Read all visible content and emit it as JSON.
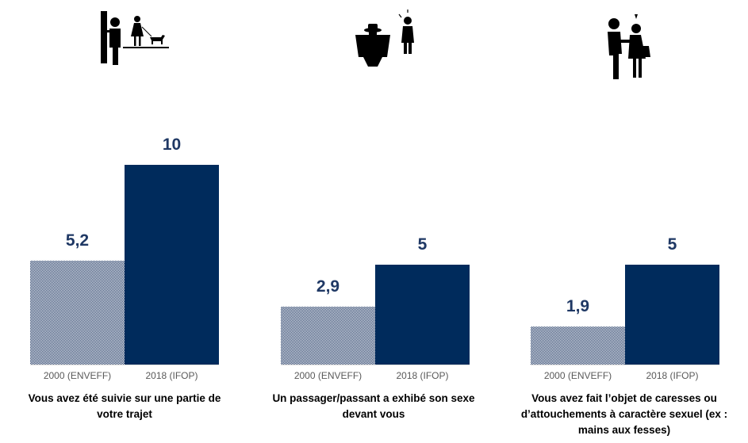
{
  "colors": {
    "series_2018": "#002b5c",
    "series_2000": "#1f3864",
    "value_label": "#1f3864",
    "baseline": "#d9d9d9"
  },
  "icons": [
    "man-following-woman-icon",
    "flasher-icon",
    "groping-icon"
  ],
  "chart_data": [
    {
      "type": "bar",
      "title": "Vous avez été suivie sur une partie de votre trajet",
      "title_lines": [
        "Vous avez été suivie sur une partie de",
        "votre trajet"
      ],
      "categories": [
        "2000 (ENVEFF)",
        "2018 (IFOP)"
      ],
      "values": [
        5.2,
        10
      ],
      "value_labels": [
        "5,2",
        "10"
      ],
      "ylim": [
        0,
        10
      ]
    },
    {
      "type": "bar",
      "title": "Un passager/passant a exhibé son sexe devant vous",
      "title_lines": [
        "Un passager/passant a exhibé son sexe",
        "devant vous"
      ],
      "categories": [
        "2000 (ENVEFF)",
        "2018 (IFOP)"
      ],
      "values": [
        2.9,
        5
      ],
      "value_labels": [
        "2,9",
        "5"
      ],
      "ylim": [
        0,
        10
      ]
    },
    {
      "type": "bar",
      "title": "Vous avez fait l’objet de caresses ou d’attouchements à caractère sexuel (ex : mains aux fesses)",
      "title_lines": [
        "Vous avez fait l’objet de caresses ou",
        "d’attouchements à caractère sexuel (ex :",
        "mains aux fesses)"
      ],
      "categories": [
        "2000 (ENVEFF)",
        "2018 (IFOP)"
      ],
      "values": [
        1.9,
        5
      ],
      "value_labels": [
        "1,9",
        "5"
      ],
      "ylim": [
        0,
        10
      ]
    }
  ]
}
